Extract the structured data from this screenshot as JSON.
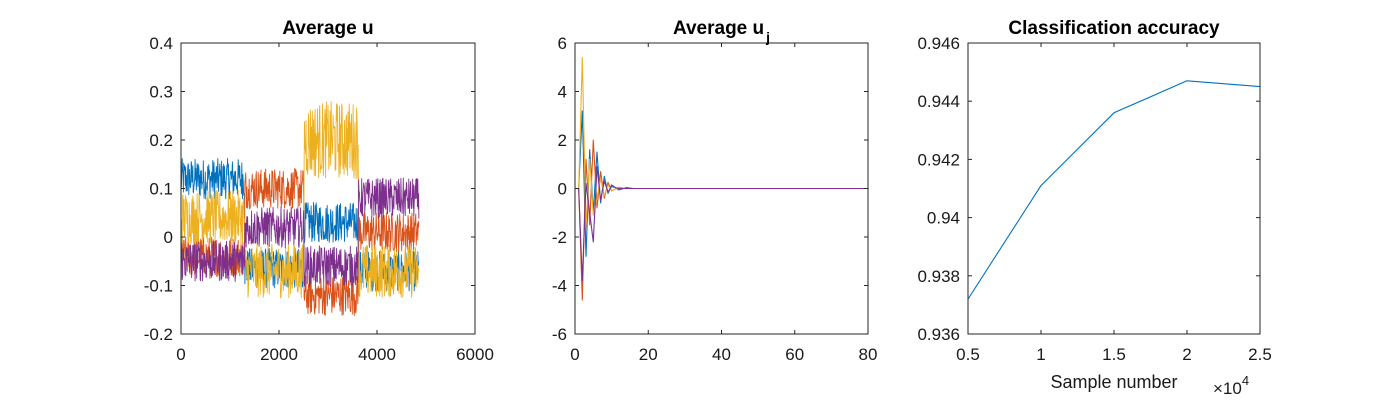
{
  "colors": {
    "blue": "#0072BD",
    "orange": "#D95319",
    "yellow": "#EDB120",
    "purple": "#7E2F8E"
  },
  "chart_data": [
    {
      "type": "line",
      "title": "Average u",
      "xlabel": "",
      "ylabel": "",
      "xlim": [
        0,
        6000
      ],
      "ylim": [
        -0.2,
        0.4
      ],
      "xticks": [
        0,
        2000,
        4000,
        6000
      ],
      "xtick_labels": [
        "0",
        "2000",
        "4000",
        "6000"
      ],
      "yticks": [
        -0.2,
        -0.1,
        0,
        0.1,
        0.2,
        0.3,
        0.4
      ],
      "ytick_labels": [
        "-0.2",
        "-0.1",
        "0",
        "0.1",
        "0.2",
        "0.3",
        "0.4"
      ],
      "grid": false,
      "style": "noisy",
      "x_extent": [
        0,
        4860
      ],
      "segment_edges": [
        0,
        1300,
        2510,
        3620,
        4860
      ],
      "series": [
        {
          "color": "#0072BD",
          "levels": [
            0.12,
            -0.065,
            0.03,
            -0.07
          ],
          "amplitude": 0.03
        },
        {
          "color": "#D95319",
          "levels": [
            -0.04,
            0.1,
            -0.12,
            0.01
          ],
          "amplitude": 0.03
        },
        {
          "color": "#EDB120",
          "levels": [
            0.04,
            -0.07,
            0.2,
            -0.07
          ],
          "amplitude": 0.04
        },
        {
          "color": "#7E2F8E",
          "levels": [
            -0.05,
            0.02,
            -0.06,
            0.08
          ],
          "amplitude": 0.03
        }
      ]
    },
    {
      "type": "line",
      "title": "Average u",
      "title_subscript": "j",
      "xlabel": "",
      "ylabel": "",
      "xlim": [
        0,
        80
      ],
      "ylim": [
        -6,
        6
      ],
      "xticks": [
        0,
        20,
        40,
        60,
        80
      ],
      "xtick_labels": [
        "0",
        "20",
        "40",
        "60",
        "80"
      ],
      "yticks": [
        -6,
        -4,
        -2,
        0,
        2,
        4,
        6
      ],
      "ytick_labels": [
        "-6",
        "-4",
        "-2",
        "0",
        "2",
        "4",
        "6"
      ],
      "grid": false,
      "style": "damped",
      "x_extent": [
        1,
        80
      ],
      "series": [
        {
          "color": "#0072BD",
          "x": [
            1,
            2,
            3,
            4,
            5,
            6,
            7,
            8,
            9,
            10,
            12,
            14,
            16,
            18,
            20,
            25,
            30,
            40,
            50,
            60,
            70,
            80
          ],
          "y": [
            0,
            3.2,
            -2.8,
            1.6,
            -1.0,
            1.5,
            -0.6,
            0.5,
            -0.2,
            0.15,
            -0.06,
            0.04,
            0,
            0,
            0,
            0,
            0,
            0,
            0,
            0,
            0,
            0
          ]
        },
        {
          "color": "#D95319",
          "x": [
            1,
            2,
            3,
            4,
            5,
            6,
            7,
            8,
            9,
            10,
            12,
            14,
            16,
            18,
            20,
            25,
            30,
            40,
            50,
            60,
            70,
            80
          ],
          "y": [
            0,
            -4.6,
            1.2,
            -1.5,
            2.0,
            -0.8,
            0.7,
            -0.4,
            0.25,
            -0.1,
            0.05,
            0,
            0,
            0,
            0,
            0,
            0,
            0,
            0,
            0,
            0,
            0
          ]
        },
        {
          "color": "#EDB120",
          "x": [
            1,
            2,
            3,
            4,
            5,
            6,
            7,
            8,
            9,
            10,
            12,
            14,
            16,
            18,
            20,
            25,
            30,
            40,
            50,
            60,
            70,
            80
          ],
          "y": [
            0,
            5.4,
            -1.6,
            1.2,
            -1.1,
            -0.4,
            0.4,
            -0.3,
            0.15,
            -0.1,
            0.04,
            0,
            0,
            0,
            0,
            0,
            0,
            0,
            0,
            0,
            0,
            0
          ]
        },
        {
          "color": "#7E2F8E",
          "x": [
            1,
            2,
            3,
            4,
            5,
            6,
            7,
            8,
            9,
            10,
            12,
            14,
            16,
            18,
            20,
            25,
            30,
            40,
            50,
            60,
            70,
            80
          ],
          "y": [
            0,
            -3.8,
            0.2,
            -1.0,
            -2.2,
            0.9,
            -0.5,
            0.3,
            -0.15,
            0.08,
            0,
            0,
            0,
            0,
            0,
            0,
            0,
            0,
            0,
            0,
            0,
            0
          ]
        }
      ]
    },
    {
      "type": "line",
      "title": "Classification accuracy",
      "xlabel": "Sample number",
      "ylabel": "",
      "x_multiplier": "×10",
      "x_multiplier_exponent": "4",
      "xlim": [
        0.5,
        2.5
      ],
      "ylim": [
        0.936,
        0.946
      ],
      "xticks": [
        0.5,
        1,
        1.5,
        2,
        2.5
      ],
      "xtick_labels": [
        "0.5",
        "1",
        "1.5",
        "2",
        "2.5"
      ],
      "yticks": [
        0.936,
        0.938,
        0.94,
        0.942,
        0.944,
        0.946
      ],
      "ytick_labels": [
        "0.936",
        "0.938",
        "0.94",
        "0.942",
        "0.944",
        "0.946"
      ],
      "grid": false,
      "style": "plain",
      "series": [
        {
          "color": "#0072BD",
          "x": [
            0.5,
            1,
            1.5,
            2,
            2.5
          ],
          "y": [
            0.9372,
            0.9411,
            0.9436,
            0.9447,
            0.9445
          ]
        }
      ]
    }
  ]
}
